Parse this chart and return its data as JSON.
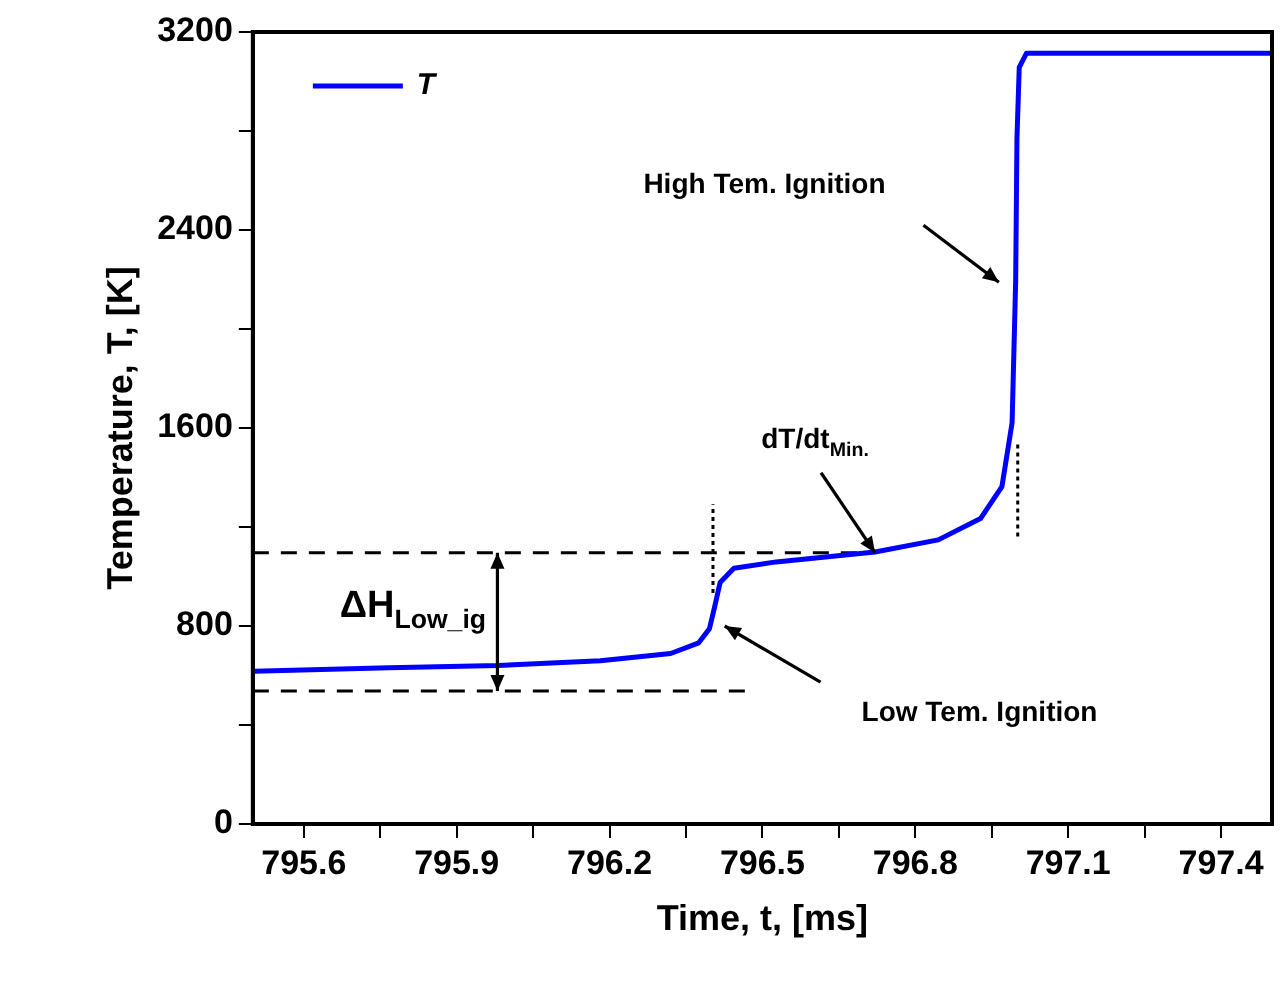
{
  "chart_data": {
    "type": "line",
    "xlabel": "Time, t, [ms]",
    "ylabel": "Temperature, T, [K]",
    "xlim": [
      795.5,
      797.5
    ],
    "ylim": [
      0,
      3200
    ],
    "xticks": [
      795.6,
      {
        "value": 795.75,
        "label": null
      },
      795.9,
      {
        "value": 796.05,
        "label": null
      },
      796.2,
      {
        "value": 796.35,
        "label": null
      },
      796.5,
      {
        "value": 796.65,
        "label": null
      },
      796.8,
      {
        "value": 796.95,
        "label": null
      },
      797.1,
      {
        "value": 797.25,
        "label": null
      },
      797.4
    ],
    "yticks": [
      0,
      {
        "value": 400,
        "label": null
      },
      800,
      {
        "value": 1200,
        "label": null
      },
      1600,
      {
        "value": 2000,
        "label": null
      },
      2400,
      {
        "value": 2800,
        "label": null
      },
      3200
    ],
    "grid": false,
    "legend": "top left",
    "marker": "none",
    "series": [
      {
        "name": "T",
        "color": "#0000ff",
        "line_style": "solid",
        "x": [
          795.5,
          795.767,
          795.981,
          796.182,
          796.32,
          796.375,
          796.396,
          796.406,
          796.417,
          796.444,
          796.527,
          796.721,
          796.845,
          796.928,
          796.97,
          796.99,
          796.997,
          796.9995,
          797.004,
          797.018,
          797.5
        ],
        "values": [
          617,
          631,
          640,
          660,
          689,
          732,
          789,
          875,
          976,
          1033,
          1059,
          1099,
          1148,
          1234,
          1363,
          1622,
          2196,
          2770,
          3057,
          3114,
          3114
        ]
      },
      {
        "color": "#000000",
        "line_style": "dashed",
        "x": [
          795.5,
          796.721
        ],
        "values": [
          1096,
          1096
        ]
      },
      {
        "color": "#000000",
        "line_style": "dashed",
        "x": [
          795.5,
          796.47
        ],
        "values": [
          537,
          537
        ]
      },
      {
        "color": "#000000",
        "line_style": "dotted",
        "x": [
          796.403,
          796.403
        ],
        "values": [
          933,
          1292
        ]
      },
      {
        "color": "#000000",
        "line_style": "dotted",
        "x": [
          797.001,
          797.001
        ],
        "values": [
          1162,
          1536
        ]
      }
    ],
    "annotations": [
      "High Tem. Ignition",
      {
        "text": "dT/dt$_{Min.}$",
        "x": 796.721,
        "y": 1096
      },
      "Low Tem. Ignition",
      "ΔH$_{Low_ig}$"
    ]
  }
}
